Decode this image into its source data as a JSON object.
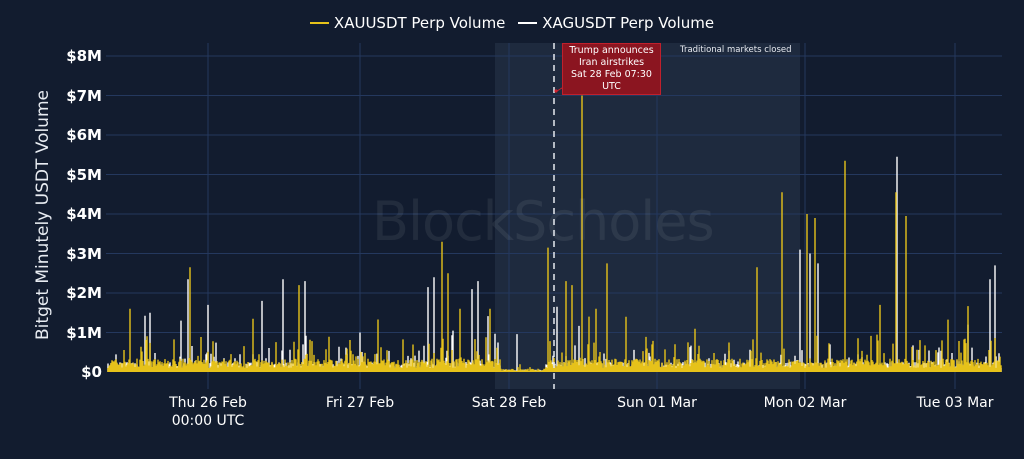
{
  "legend": {
    "items": [
      {
        "label": "XAUUSDT Perp Volume",
        "color": "#e6c21a"
      },
      {
        "label": "XAGUSDT Perp Volume",
        "color": "#ffffff"
      }
    ]
  },
  "axes": {
    "ylabel": "Bitget Minutely USDT Volume",
    "yticks": [
      "$0",
      "$1M",
      "$2M",
      "$3M",
      "$4M",
      "$5M",
      "$6M",
      "$7M",
      "$8M"
    ],
    "xticks": [
      {
        "line1": "Thu 26 Feb",
        "line2": "00:00 UTC"
      },
      {
        "line1": "Fri 27 Feb",
        "line2": ""
      },
      {
        "line1": "Sat 28 Feb",
        "line2": ""
      },
      {
        "line1": "Sun 01 Mar",
        "line2": ""
      },
      {
        "line1": "Mon 02 Mar",
        "line2": ""
      },
      {
        "line1": "Tue 03 Mar",
        "line2": ""
      }
    ]
  },
  "annotations": {
    "event_line1": "Trump announces",
    "event_line2": "Iran airstrikes",
    "event_line3": "Sat 28 Feb 07:30 UTC",
    "shaded_label": "Traditional markets closed"
  },
  "watermark": "BlockScholes",
  "colors": {
    "background": "#121c2f",
    "grid": "#24385e",
    "gold": "#e6c21a",
    "silver": "#ffffff",
    "shade": "#1e2a3e",
    "annotation": "#8b1520"
  },
  "chart_data": {
    "type": "line",
    "title": "",
    "xlabel": "",
    "ylabel": "Bitget Minutely USDT Volume",
    "ylim": [
      0,
      8300000
    ],
    "x_range_days": [
      "Wed 25 Feb ~10:00 UTC",
      "Tue 03 Mar ~07:00 UTC"
    ],
    "x_tick_labels": [
      "Thu 26 Feb 00:00 UTC",
      "Fri 27 Feb",
      "Sat 28 Feb",
      "Sun 01 Mar",
      "Mon 02 Mar",
      "Tue 03 Mar"
    ],
    "y_tick_labels": [
      "$0",
      "$1M",
      "$2M",
      "$3M",
      "$4M",
      "$5M",
      "$6M",
      "$7M",
      "$8M"
    ],
    "legend_position": "top-center",
    "grid": true,
    "shaded_region": {
      "label": "Traditional markets closed",
      "from": "Fri 27 Feb ~22:00 UTC",
      "to": "Mon 02 Mar ~00:00 UTC"
    },
    "event_marker": {
      "label": "Trump announces Iran airstrikes",
      "time": "Sat 28 Feb 07:30 UTC"
    },
    "series": [
      {
        "name": "XAUUSDT Perp Volume",
        "color": "#e6c21a",
        "baseline_approx": 200000,
        "peaks": [
          {
            "time": "Wed 25 Feb ~12:00",
            "value": 1600000
          },
          {
            "time": "Wed 25 Feb ~20:00",
            "value": 2650000
          },
          {
            "time": "Thu 26 Feb ~06:00",
            "value": 1350000
          },
          {
            "time": "Thu 26 Feb ~15:00",
            "value": 2200000
          },
          {
            "time": "Fri 27 Feb ~13:00",
            "value": 3300000
          },
          {
            "time": "Fri 27 Feb ~20:00",
            "value": 1600000
          },
          {
            "time": "Sat 28 Feb ~06:00",
            "value": 3150000
          },
          {
            "time": "Sat 28 Feb ~11:00",
            "value": 7000000
          },
          {
            "time": "Sat 28 Feb ~17:00",
            "value": 2750000
          },
          {
            "time": "Mon 02 Mar ~00:00",
            "value": 4550000
          },
          {
            "time": "Mon 02 Mar ~00:00",
            "value": 2650000
          },
          {
            "time": "Mon 02 Mar ~05:00",
            "value": 4000000
          },
          {
            "time": "Mon 02 Mar ~07:00",
            "value": 3900000
          },
          {
            "time": "Mon 02 Mar ~14:00",
            "value": 5350000
          },
          {
            "time": "Mon 02 Mar ~23:00",
            "value": 4550000
          },
          {
            "time": "Tue 03 Mar ~01:00",
            "value": 3950000
          }
        ]
      },
      {
        "name": "XAGUSDT Perp Volume",
        "color": "#ffffff",
        "baseline_approx": 150000,
        "peaks": [
          {
            "time": "Wed 25 Feb ~20:00",
            "value": 2350000
          },
          {
            "time": "Thu 26 Feb ~00:00",
            "value": 1500000
          },
          {
            "time": "Thu 26 Feb ~09:00",
            "value": 1800000
          },
          {
            "time": "Thu 26 Feb ~15:00",
            "value": 2350000
          },
          {
            "time": "Fri 27 Feb ~10:00",
            "value": 2150000
          },
          {
            "time": "Fri 27 Feb ~17:00",
            "value": 2400000
          },
          {
            "time": "Sat 28 Feb ~08:00",
            "value": 1650000
          },
          {
            "time": "Mon 02 Mar ~06:00",
            "value": 3100000
          },
          {
            "time": "Mon 02 Mar ~08:00",
            "value": 3000000
          },
          {
            "time": "Mon 02 Mar ~23:00",
            "value": 5450000
          },
          {
            "time": "Tue 03 Mar ~06:00",
            "value": 2700000
          }
        ]
      }
    ]
  }
}
